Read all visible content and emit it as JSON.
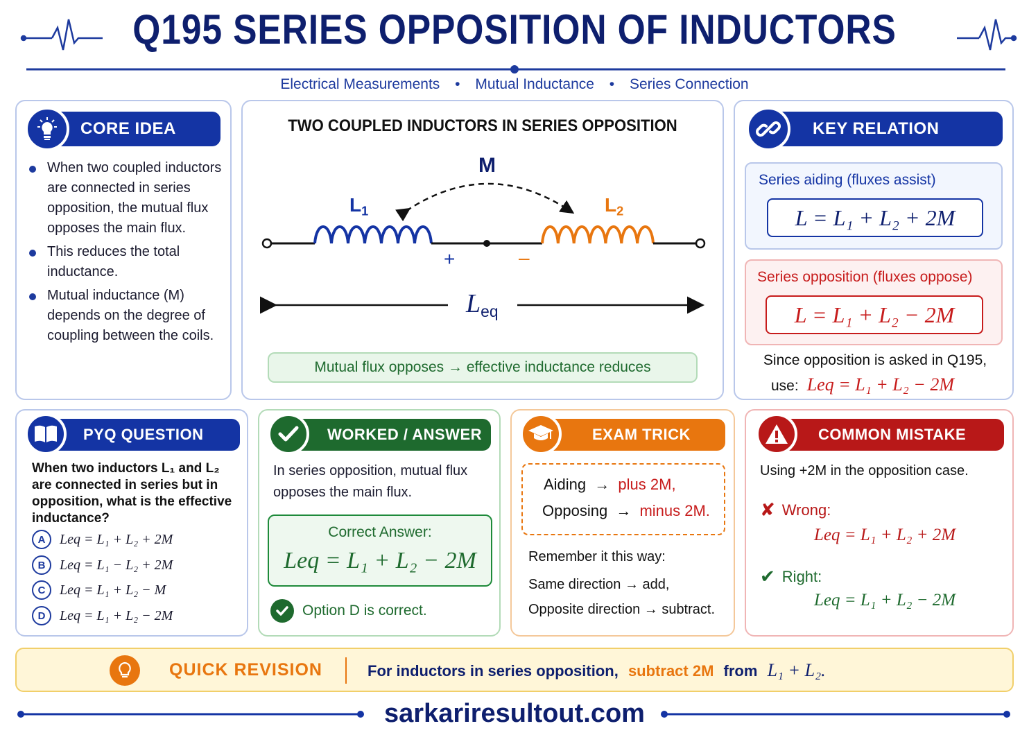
{
  "header": {
    "title": "Q195  SERIES OPPOSITION OF INDUCTORS",
    "subtitle": [
      "Electrical Measurements",
      "Mutual Inductance",
      "Series Connection"
    ],
    "separator": "•"
  },
  "core_idea": {
    "heading": "CORE IDEA",
    "points": [
      "When two coupled inductors are connected in series opposition, the mutual flux opposes the main flux.",
      "This reduces the total inductance.",
      "Mutual inductance (M) depends on the degree of coupling between the coils."
    ]
  },
  "diagram": {
    "heading": "TWO COUPLED INDUCTORS IN SERIES OPPOSITION",
    "mutual_label": "M",
    "l1": "L",
    "l1_sub": "1",
    "l2": "L",
    "l2_sub": "2",
    "plus": "+",
    "minus": "–",
    "leq": "L",
    "leq_sub": "eq",
    "note": "Mutual flux opposes → effective inductance reduces"
  },
  "key_relation": {
    "heading": "KEY RELATION",
    "aiding_label": "Series aiding (fluxes assist)",
    "aiding_formula": "L = L₁ + L₂ + 2M",
    "opposition_label": "Series opposition (fluxes oppose)",
    "opposition_formula": "L = L₁ + L₂ − 2M",
    "since_text": "Since opposition is asked in Q195,",
    "use_label": "use:",
    "use_formula": "Leq = L₁ + L₂ − 2M"
  },
  "pyq": {
    "heading": "PYQ QUESTION",
    "question": "When two inductors L₁ and L₂ are connected in series but in opposition, what is the effective inductance?",
    "options": [
      {
        "letter": "A",
        "text": "Leq = L₁ + L₂ + 2M"
      },
      {
        "letter": "B",
        "text": "Leq = L₁ − L₂ + 2M"
      },
      {
        "letter": "C",
        "text": "Leq = L₁ + L₂ − M"
      },
      {
        "letter": "D",
        "text": "Leq = L₁ + L₂ − 2M"
      }
    ]
  },
  "worked": {
    "heading": "WORKED / ANSWER",
    "text": "In series opposition, mutual flux opposes the main flux.",
    "answer_label": "Correct Answer:",
    "answer_formula": "Leq = L₁ + L₂ − 2M",
    "check_text": "Option D is correct."
  },
  "exam_trick": {
    "heading": "EXAM TRICK",
    "aiding": "Aiding",
    "aiding_value": "plus 2M,",
    "opposing": "Opposing",
    "opposing_value": "minus 2M.",
    "arrow": "→",
    "remember": "Remember it this way:",
    "line1": "Same direction → add,",
    "line2": "Opposite direction → subtract."
  },
  "mistake": {
    "heading": "COMMON MISTAKE",
    "text": "Using +2M in the opposition case.",
    "wrong_label": "Wrong:",
    "wrong_formula": "Leq = L₁ + L₂ + 2M",
    "right_label": "Right:",
    "right_formula": "Leq = L₁ + L₂ − 2M"
  },
  "revision": {
    "heading": "QUICK REVISION",
    "text_a": "For inductors in series opposition,",
    "text_b": "subtract 2M",
    "text_c": "from",
    "text_d": "L₁ + L₂."
  },
  "footer": {
    "site": "sarkariresultout.com"
  },
  "colors": {
    "navy": "#0e1f6e",
    "blue": "#1d3a9e",
    "orange": "#e8760f",
    "green": "#1e8a3a",
    "red": "#c71c1c",
    "yellow_bg": "#fff6d8"
  }
}
